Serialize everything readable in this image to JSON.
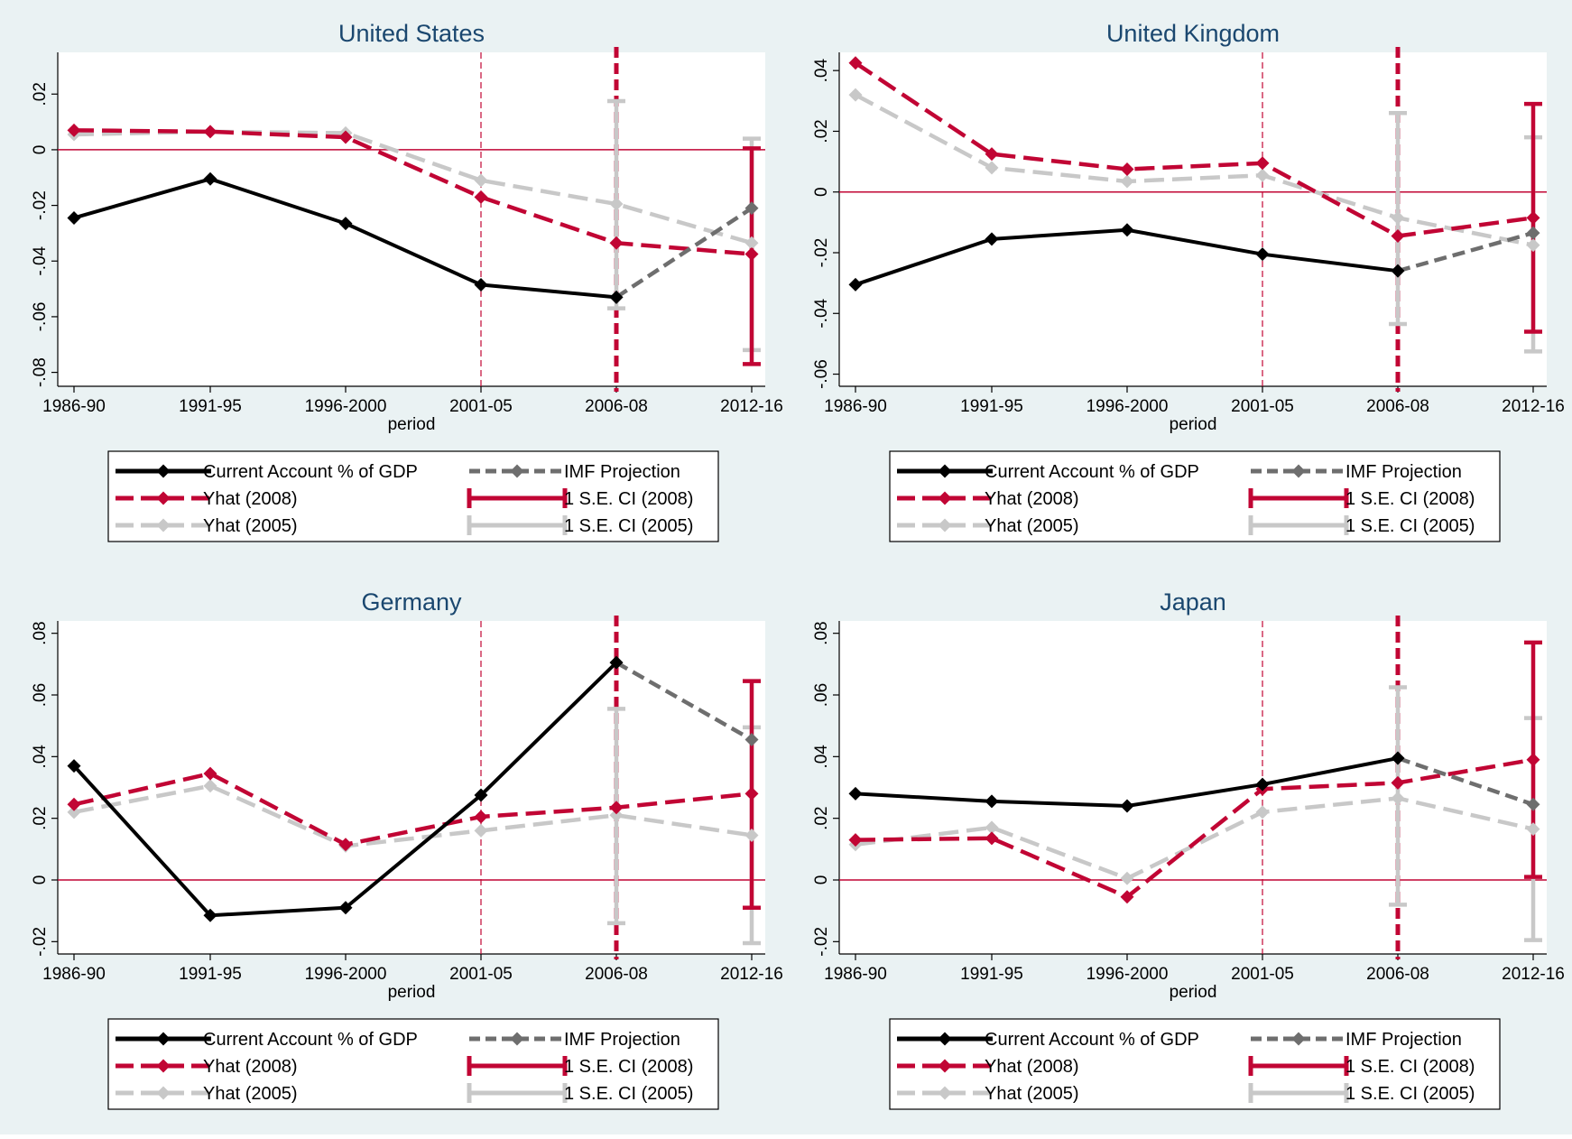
{
  "colors": {
    "background": "#eaf2f3",
    "plot_bg": "#ffffff",
    "current_account": "#000000",
    "imf_projection": "#6e6e6e",
    "yhat_2008": "#c10534",
    "yhat_2005": "#c8c8c8",
    "title": "#1a476f"
  },
  "legend": {
    "current_account": "Current Account % of GDP",
    "imf_projection": "IMF Projection",
    "yhat_2008": "Yhat (2008)",
    "ci_2008": "1 S.E. CI (2008)",
    "yhat_2005": "Yhat (2005)",
    "ci_2005": "1 S.E. CI (2005)"
  },
  "chart_data": [
    {
      "type": "line",
      "title": "United States",
      "xlabel": "period",
      "categories": [
        "1986-90",
        "1991-95",
        "1996-2000",
        "2001-05",
        "2006-08",
        "2012-16"
      ],
      "ylim": [
        -0.085,
        0.035
      ],
      "yticks": [
        -0.08,
        -0.06,
        -0.04,
        -0.02,
        0,
        0.02
      ],
      "ytick_labels": [
        "-.08",
        "-.06",
        "-.04",
        "-.02",
        "0",
        ".02"
      ],
      "zero_line": true,
      "vlines": [
        {
          "x": "2001-05",
          "style": "thin"
        },
        {
          "x": "2006-08",
          "style": "thick"
        }
      ],
      "series": [
        {
          "name": "Current Account % of GDP",
          "values": [
            -0.0245,
            -0.0105,
            -0.0265,
            -0.0485,
            -0.053,
            null
          ]
        },
        {
          "name": "IMF Projection",
          "values": [
            null,
            null,
            null,
            null,
            -0.053,
            -0.021
          ]
        },
        {
          "name": "Yhat (2008)",
          "values": [
            0.007,
            0.0065,
            0.0045,
            -0.017,
            -0.0335,
            -0.0375
          ]
        },
        {
          "name": "Yhat (2005)",
          "values": [
            0.0055,
            0.0065,
            0.006,
            -0.011,
            -0.0195,
            -0.0335
          ]
        }
      ],
      "ci_2008": [
        {
          "x": "2012-16",
          "low": -0.077,
          "high": 0.0005
        }
      ],
      "ci_2005": [
        {
          "x": "2006-08",
          "low": -0.057,
          "high": 0.0175
        },
        {
          "x": "2012-16",
          "low": -0.072,
          "high": 0.004
        }
      ]
    },
    {
      "type": "line",
      "title": "United Kingdom",
      "xlabel": "period",
      "categories": [
        "1986-90",
        "1991-95",
        "1996-2000",
        "2001-05",
        "2006-08",
        "2012-16"
      ],
      "ylim": [
        -0.064,
        0.046
      ],
      "yticks": [
        -0.06,
        -0.04,
        -0.02,
        0,
        0.02,
        0.04
      ],
      "ytick_labels": [
        "-.06",
        "-.04",
        "-.02",
        "0",
        ".02",
        ".04"
      ],
      "zero_line": true,
      "vlines": [
        {
          "x": "2001-05",
          "style": "thin"
        },
        {
          "x": "2006-08",
          "style": "thick"
        }
      ],
      "series": [
        {
          "name": "Current Account % of GDP",
          "values": [
            -0.0305,
            -0.0155,
            -0.0125,
            -0.0205,
            -0.026,
            null
          ]
        },
        {
          "name": "IMF Projection",
          "values": [
            null,
            null,
            null,
            null,
            -0.026,
            -0.0135
          ]
        },
        {
          "name": "Yhat (2008)",
          "values": [
            0.0425,
            0.0125,
            0.0075,
            0.0095,
            -0.0145,
            -0.0085
          ]
        },
        {
          "name": "Yhat (2005)",
          "values": [
            0.032,
            0.008,
            0.0035,
            0.0055,
            -0.0085,
            -0.0175
          ]
        }
      ],
      "ci_2008": [
        {
          "x": "2012-16",
          "low": -0.046,
          "high": 0.029
        }
      ],
      "ci_2005": [
        {
          "x": "2006-08",
          "low": -0.0435,
          "high": 0.026
        },
        {
          "x": "2012-16",
          "low": -0.0525,
          "high": 0.018
        }
      ]
    },
    {
      "type": "line",
      "title": "Germany",
      "xlabel": "period",
      "categories": [
        "1986-90",
        "1991-95",
        "1996-2000",
        "2001-05",
        "2006-08",
        "2012-16"
      ],
      "ylim": [
        -0.024,
        0.084
      ],
      "yticks": [
        -0.02,
        0,
        0.02,
        0.04,
        0.06,
        0.08
      ],
      "ytick_labels": [
        "-.02",
        "0",
        ".02",
        ".04",
        ".06",
        ".08"
      ],
      "zero_line": true,
      "vlines": [
        {
          "x": "2001-05",
          "style": "thin"
        },
        {
          "x": "2006-08",
          "style": "thick"
        }
      ],
      "series": [
        {
          "name": "Current Account % of GDP",
          "values": [
            0.037,
            -0.0115,
            -0.009,
            0.0275,
            0.0705,
            null
          ]
        },
        {
          "name": "IMF Projection",
          "values": [
            null,
            null,
            null,
            null,
            0.0705,
            0.0455
          ]
        },
        {
          "name": "Yhat (2008)",
          "values": [
            0.0245,
            0.0345,
            0.0115,
            0.0205,
            0.0235,
            0.028
          ]
        },
        {
          "name": "Yhat (2005)",
          "values": [
            0.022,
            0.0305,
            0.011,
            0.016,
            0.021,
            0.0145
          ]
        }
      ],
      "ci_2008": [
        {
          "x": "2012-16",
          "low": -0.009,
          "high": 0.0645
        }
      ],
      "ci_2005": [
        {
          "x": "2006-08",
          "low": -0.014,
          "high": 0.0555
        },
        {
          "x": "2012-16",
          "low": -0.0205,
          "high": 0.0495
        }
      ]
    },
    {
      "type": "line",
      "title": "Japan",
      "xlabel": "period",
      "categories": [
        "1986-90",
        "1991-95",
        "1996-2000",
        "2001-05",
        "2006-08",
        "2012-16"
      ],
      "ylim": [
        -0.024,
        0.084
      ],
      "yticks": [
        -0.02,
        0,
        0.02,
        0.04,
        0.06,
        0.08
      ],
      "ytick_labels": [
        "-.02",
        "0",
        ".02",
        ".04",
        ".06",
        ".08"
      ],
      "zero_line": true,
      "vlines": [
        {
          "x": "2001-05",
          "style": "thin"
        },
        {
          "x": "2006-08",
          "style": "thick"
        }
      ],
      "series": [
        {
          "name": "Current Account % of GDP",
          "values": [
            0.028,
            0.0255,
            0.024,
            0.031,
            0.0395,
            null
          ]
        },
        {
          "name": "IMF Projection",
          "values": [
            null,
            null,
            null,
            null,
            0.0395,
            0.0245
          ]
        },
        {
          "name": "Yhat (2008)",
          "values": [
            0.013,
            0.0135,
            -0.0055,
            0.0295,
            0.0315,
            0.039
          ]
        },
        {
          "name": "Yhat (2005)",
          "values": [
            0.0115,
            0.017,
            0.0005,
            0.022,
            0.0265,
            0.0165
          ]
        }
      ],
      "ci_2008": [
        {
          "x": "2012-16",
          "low": 0.001,
          "high": 0.077
        }
      ],
      "ci_2005": [
        {
          "x": "2006-08",
          "low": -0.008,
          "high": 0.0625
        },
        {
          "x": "2012-16",
          "low": -0.0195,
          "high": 0.0525
        }
      ]
    }
  ]
}
